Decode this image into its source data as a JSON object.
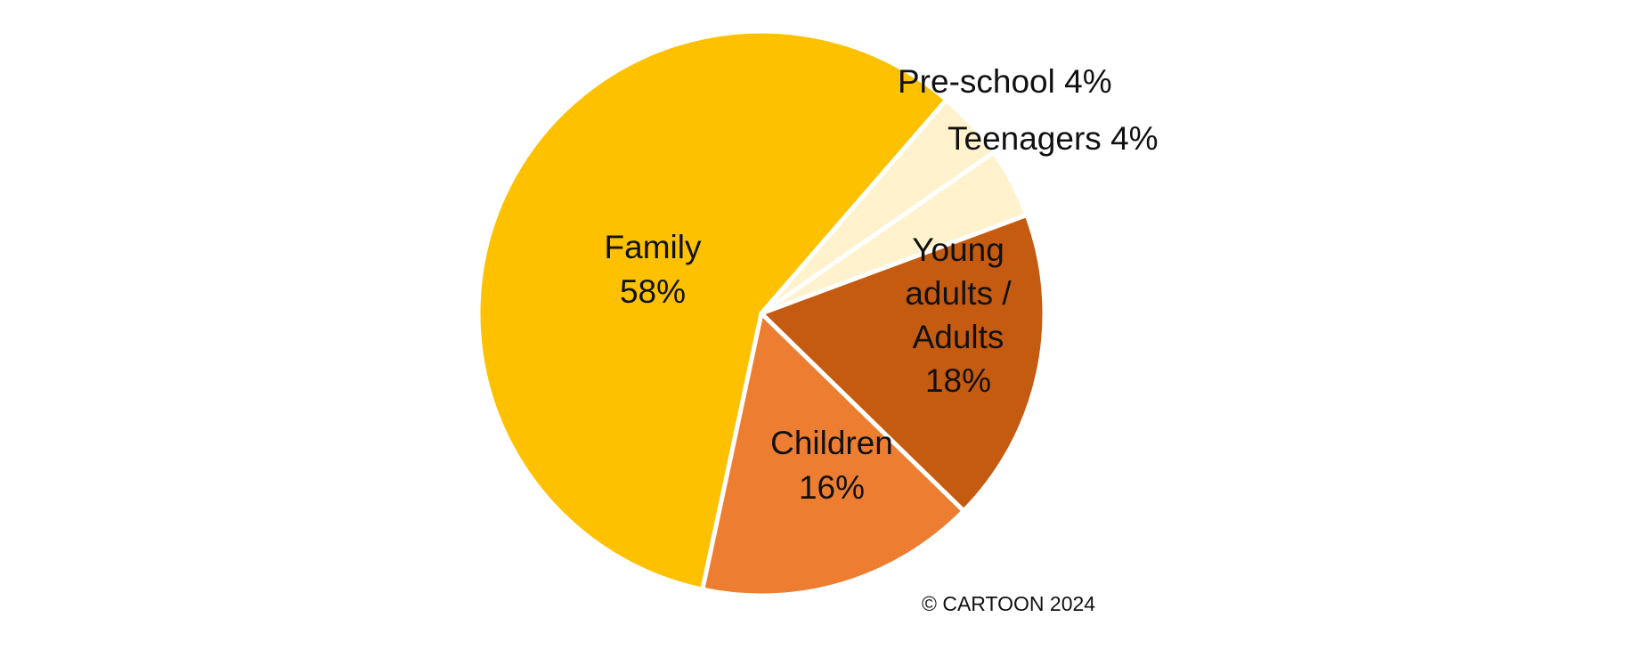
{
  "chart_data": {
    "type": "pie",
    "title": "",
    "slices": [
      {
        "label": "Family",
        "value": 58,
        "value_label": "58%",
        "color": "#FDC100",
        "label_placement": "inside"
      },
      {
        "label": "Children",
        "value": 16,
        "value_label": "16%",
        "color": "#ED7D31",
        "label_placement": "inside"
      },
      {
        "label": "Young adults / Adults",
        "value": 18,
        "value_label": "18%",
        "color": "#C55A11",
        "label_placement": "inside"
      },
      {
        "label": "Teenagers",
        "value": 4,
        "value_label": "4%",
        "color": "#FFF2CC",
        "label_placement": "outside"
      },
      {
        "label": "Pre-school",
        "value": 4,
        "value_label": "4%",
        "color": "#FFF2CC",
        "label_placement": "outside"
      }
    ],
    "credit": "© CARTOON 2024"
  }
}
